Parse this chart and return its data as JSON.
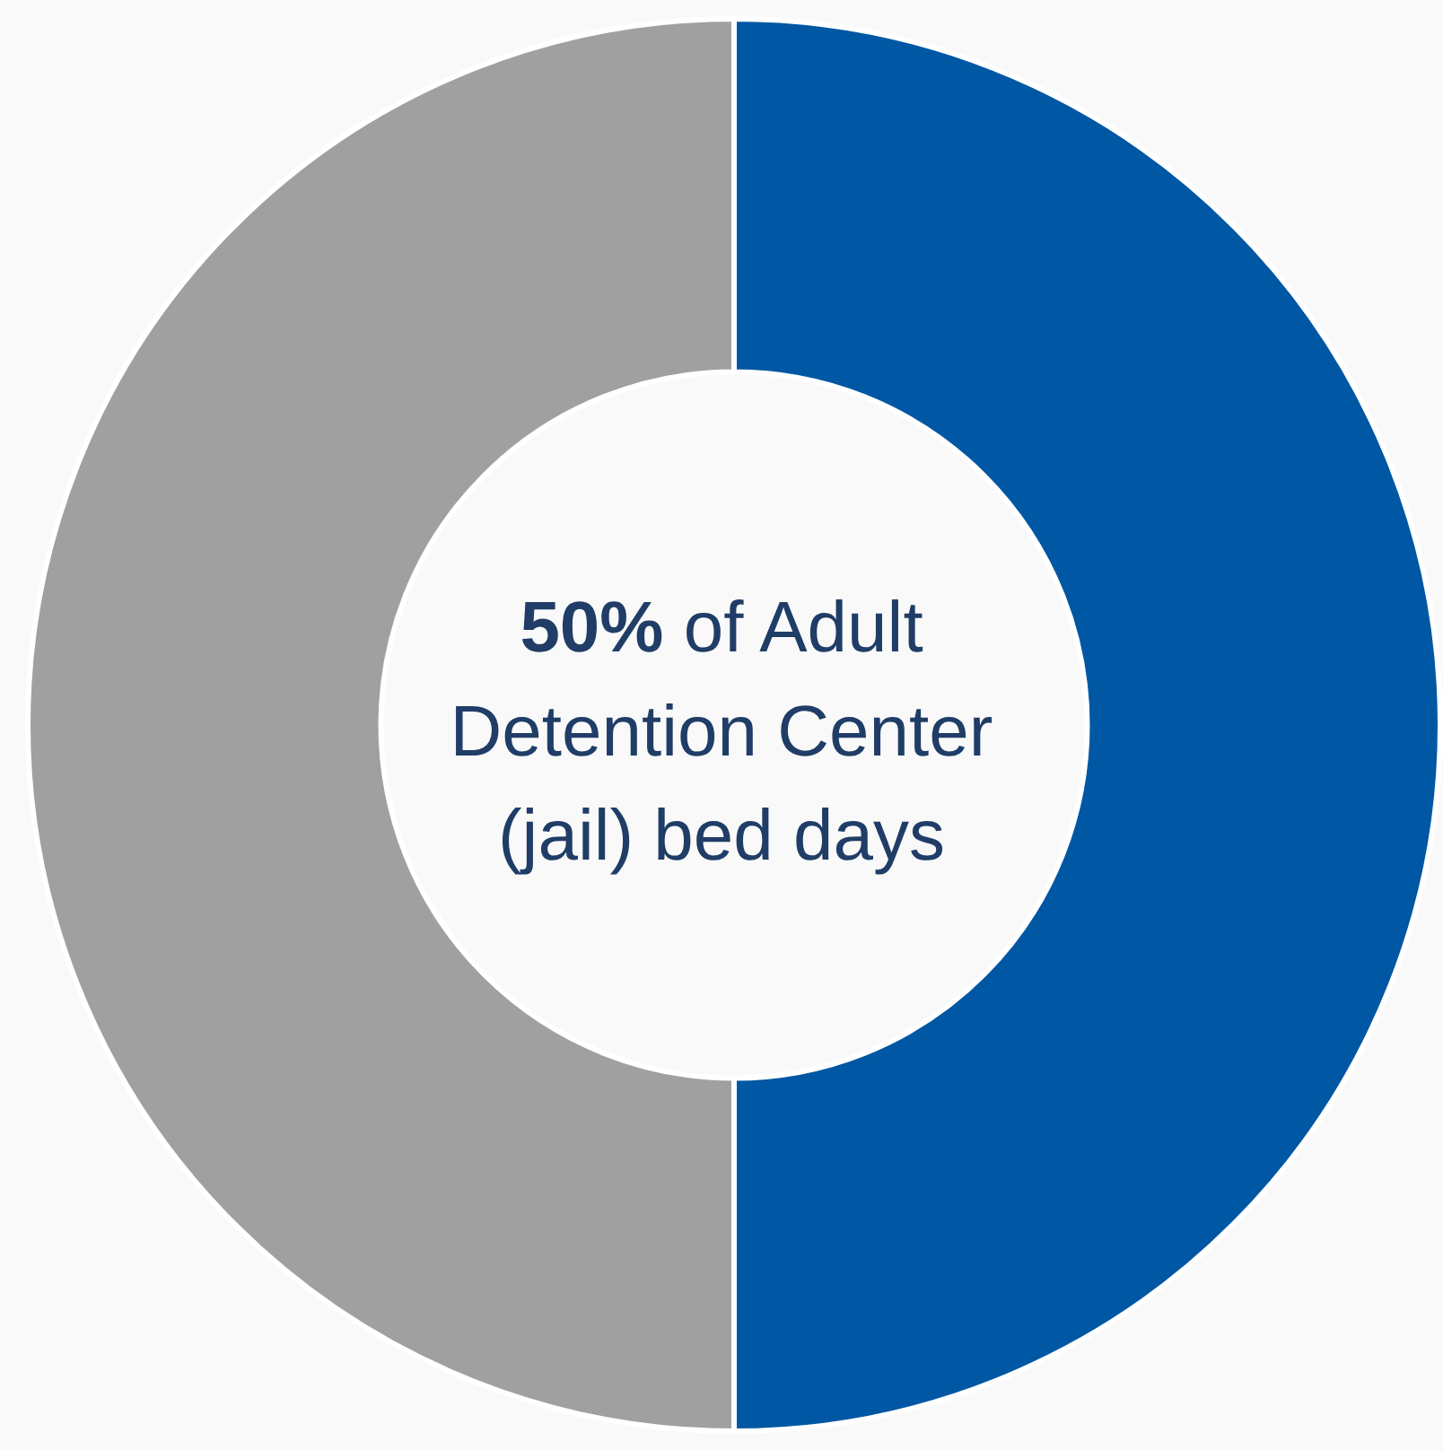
{
  "chart_data": {
    "type": "donut",
    "categories": [
      null,
      null
    ],
    "values": [
      50,
      50
    ],
    "colors": [
      "#0057a3",
      "#a0a0a0"
    ],
    "annotations": [
      "50% of Adult Detention Center (jail) bed days"
    ]
  }
}
